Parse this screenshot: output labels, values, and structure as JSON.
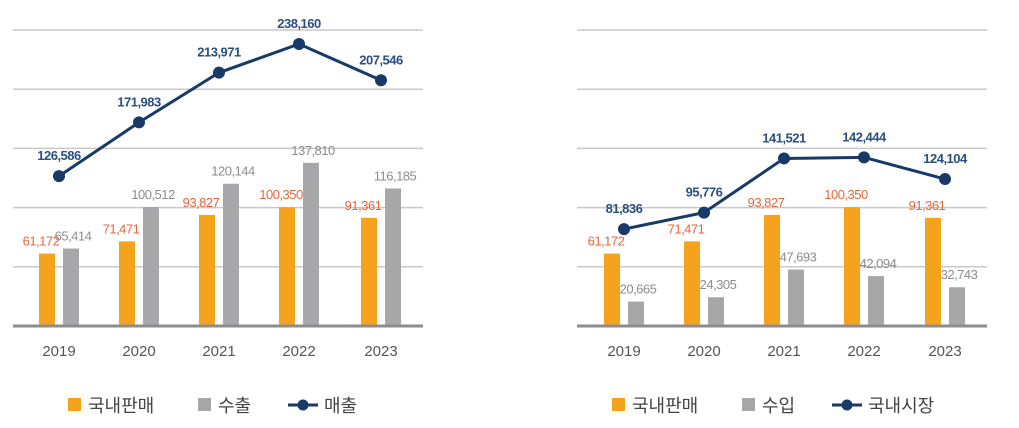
{
  "chart_data": [
    {
      "type": "bar+line",
      "categories": [
        "2019",
        "2020",
        "2021",
        "2022",
        "2023"
      ],
      "ylim": [
        0,
        250000
      ],
      "grid": true,
      "legend_placement": "bottom",
      "series": [
        {
          "name": "국내판매",
          "kind": "bar",
          "values": [
            61172,
            71471,
            93827,
            100350,
            91361
          ],
          "labels": [
            "61,172",
            "71,471",
            "93,827",
            "100,350",
            "91,361"
          ],
          "color": "#f5a31c"
        },
        {
          "name": "수출",
          "kind": "bar",
          "values": [
            65414,
            100512,
            120144,
            137810,
            116185
          ],
          "labels": [
            "65,414",
            "100,512",
            "120,144",
            "137,810",
            "116,185"
          ],
          "color": "#a7a7a9"
        },
        {
          "name": "매출",
          "kind": "line",
          "values": [
            126586,
            171983,
            213971,
            238160,
            207546
          ],
          "labels": [
            "126,586",
            "171,983",
            "213,971",
            "238,160",
            "207,546"
          ],
          "color": "#173a66"
        }
      ]
    },
    {
      "type": "bar+line",
      "categories": [
        "2019",
        "2020",
        "2021",
        "2022",
        "2023"
      ],
      "ylim": [
        0,
        250000
      ],
      "grid": true,
      "legend_placement": "bottom",
      "series": [
        {
          "name": "국내판매",
          "kind": "bar",
          "values": [
            61172,
            71471,
            93827,
            100350,
            91361
          ],
          "labels": [
            "61,172",
            "71,471",
            "93,827",
            "100,350",
            "91,361"
          ],
          "color": "#f5a31c"
        },
        {
          "name": "수입",
          "kind": "bar",
          "values": [
            20665,
            24305,
            47693,
            42094,
            32743
          ],
          "labels": [
            "20,665",
            "24,305",
            "47,693",
            "42,094",
            "32,743"
          ],
          "color": "#a7a7a9"
        },
        {
          "name": "국내시장",
          "kind": "line",
          "values": [
            81836,
            95776,
            141521,
            142444,
            124104
          ],
          "labels": [
            "81,836",
            "95,776",
            "141,521",
            "142,444",
            "124,104"
          ],
          "color": "#173a66"
        }
      ]
    }
  ],
  "label_colors": {
    "bar1": "#e4673b",
    "bar2": "#8c8c8e",
    "line": "#2b4f80"
  }
}
